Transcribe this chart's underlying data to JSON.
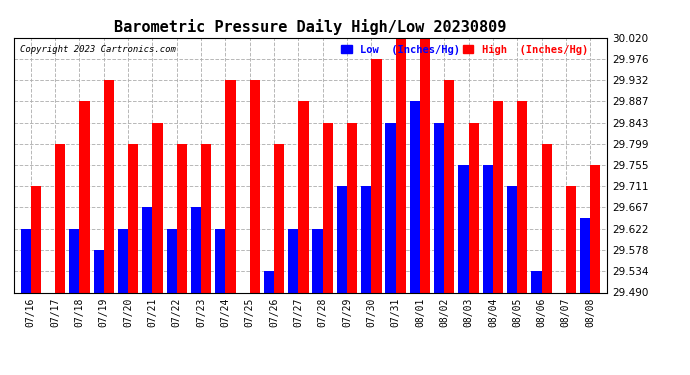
{
  "title": "Barometric Pressure Daily High/Low 20230809",
  "copyright": "Copyright 2023 Cartronics.com",
  "legend_low_label": "Low  (Inches/Hg)",
  "legend_high_label": "High  (Inches/Hg)",
  "dates": [
    "07/16",
    "07/17",
    "07/18",
    "07/19",
    "07/20",
    "07/21",
    "07/22",
    "07/23",
    "07/24",
    "07/25",
    "07/26",
    "07/27",
    "07/28",
    "07/29",
    "07/30",
    "07/31",
    "08/01",
    "08/02",
    "08/03",
    "08/04",
    "08/05",
    "08/06",
    "08/07",
    "08/08"
  ],
  "low_values": [
    29.622,
    29.49,
    29.622,
    29.578,
    29.622,
    29.667,
    29.622,
    29.667,
    29.622,
    29.49,
    29.534,
    29.622,
    29.622,
    29.711,
    29.711,
    29.843,
    29.887,
    29.843,
    29.755,
    29.755,
    29.711,
    29.534,
    29.49,
    29.645
  ],
  "high_values": [
    29.711,
    29.799,
    29.887,
    29.932,
    29.799,
    29.843,
    29.799,
    29.799,
    29.932,
    29.932,
    29.799,
    29.887,
    29.843,
    29.843,
    29.976,
    30.02,
    30.02,
    29.932,
    29.843,
    29.887,
    29.887,
    29.799,
    29.711,
    29.755
  ],
  "ylim_min": 29.49,
  "ylim_max": 30.02,
  "yticks": [
    29.49,
    29.534,
    29.578,
    29.622,
    29.667,
    29.711,
    29.755,
    29.799,
    29.843,
    29.887,
    29.932,
    29.976,
    30.02
  ],
  "low_color": "#0000ff",
  "high_color": "#ff0000",
  "background_color": "#ffffff",
  "grid_color": "#b0b0b0",
  "title_fontsize": 11,
  "bar_width": 0.42
}
